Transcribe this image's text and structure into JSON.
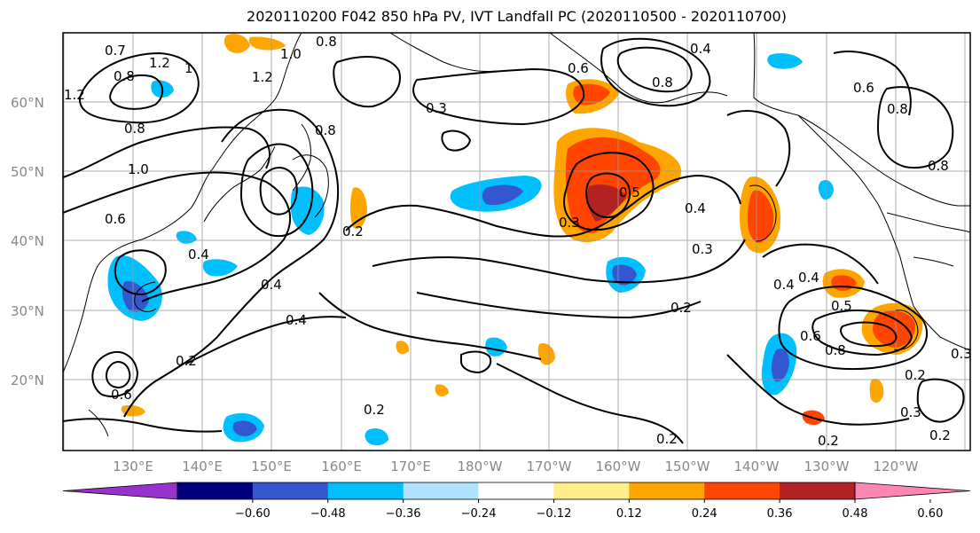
{
  "title": "2020110200 F042 850 hPa PV, IVT Landfall PC (2020110500 - 2020110700)",
  "map": {
    "lon_ticks": [
      "130°E",
      "140°E",
      "150°E",
      "160°E",
      "170°E",
      "180°W",
      "170°W",
      "160°W",
      "150°W",
      "140°W",
      "130°W",
      "120°W"
    ],
    "lat_ticks": [
      "20°N",
      "30°N",
      "40°N",
      "50°N",
      "60°N"
    ],
    "contour_labels": [
      {
        "text": "0.7",
        "id": "c1"
      },
      {
        "text": "0.8",
        "id": "c2"
      },
      {
        "text": "1.2",
        "id": "c3"
      },
      {
        "text": "1",
        "id": "c4"
      },
      {
        "text": "1.2",
        "id": "c5"
      },
      {
        "text": "0.8",
        "id": "c6"
      },
      {
        "text": "1.0",
        "id": "c7"
      },
      {
        "text": "1.2",
        "id": "c8"
      },
      {
        "text": "0.8",
        "id": "c9"
      },
      {
        "text": "0.3",
        "id": "c10"
      },
      {
        "text": "0.8",
        "id": "c11"
      },
      {
        "text": "1.0",
        "id": "c12"
      },
      {
        "text": "0.6",
        "id": "c13"
      },
      {
        "text": "0.4",
        "id": "c14"
      },
      {
        "text": "0.4",
        "id": "c15"
      },
      {
        "text": "0.2",
        "id": "c16"
      },
      {
        "text": "0.6",
        "id": "c17"
      },
      {
        "text": "0.2",
        "id": "c18"
      },
      {
        "text": "0.4",
        "id": "c19"
      },
      {
        "text": "0.3",
        "id": "c20"
      },
      {
        "text": "0.5",
        "id": "c21"
      },
      {
        "text": "0.4",
        "id": "c22"
      },
      {
        "text": "0.3",
        "id": "c23"
      },
      {
        "text": "0.2",
        "id": "c24"
      },
      {
        "text": "0.4",
        "id": "c25"
      },
      {
        "text": "0.4",
        "id": "c26"
      },
      {
        "text": "0.5",
        "id": "c27"
      },
      {
        "text": "0.6",
        "id": "c28"
      },
      {
        "text": "0.8",
        "id": "c29"
      },
      {
        "text": "0.2",
        "id": "c30"
      },
      {
        "text": "0.3",
        "id": "c31"
      },
      {
        "text": "0.2",
        "id": "c32"
      },
      {
        "text": "0.2",
        "id": "c33"
      },
      {
        "text": "0.6",
        "id": "c34"
      },
      {
        "text": "0.8",
        "id": "c35"
      },
      {
        "text": "0.4",
        "id": "c36"
      },
      {
        "text": "0.8",
        "id": "c37"
      },
      {
        "text": "0.6",
        "id": "c38"
      },
      {
        "text": "0.8",
        "id": "c39"
      },
      {
        "text": "0.2",
        "id": "c40"
      },
      {
        "text": "0.3",
        "id": "c41"
      },
      {
        "text": "0.2",
        "id": "c42"
      }
    ]
  },
  "colorbar": {
    "colors": [
      "#9932cc",
      "#00007f",
      "#3457d0",
      "#00bfff",
      "#b0e2ff",
      "#ffffff",
      "#ffec8b",
      "#ffa500",
      "#ff4500",
      "#b22222",
      "#ff85b4"
    ],
    "tick_labels": [
      "−0.60",
      "−0.48",
      "−0.36",
      "−0.24",
      "−0.12",
      "0.12",
      "0.24",
      "0.36",
      "0.48",
      "0.60"
    ]
  }
}
